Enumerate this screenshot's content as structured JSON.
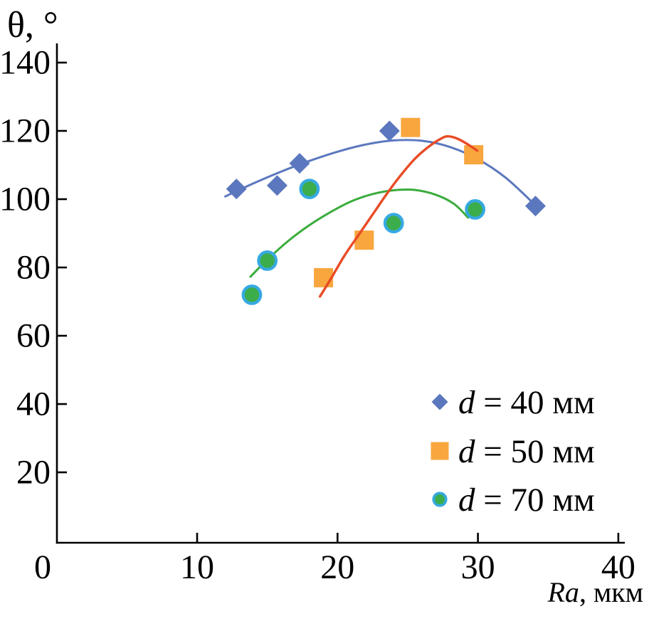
{
  "chart_data": {
    "type": "scatter",
    "title": "",
    "ylabel": "θ, °",
    "xlabel": "Ra, мкм",
    "xlabel_italic": "Ra",
    "xlabel_rest": ", мкм",
    "xlim": [
      0,
      40.5
    ],
    "ylim": [
      0,
      146
    ],
    "x_ticks": [
      0,
      10,
      20,
      30,
      40
    ],
    "y_ticks": [
      20,
      40,
      60,
      80,
      100,
      120,
      140
    ],
    "grid": false,
    "legend_position": "lower right inside",
    "axis_color": "#000000",
    "series": [
      {
        "id": "d40",
        "label": "d = 40 мм",
        "label_var": "d",
        "label_rest": " = 40 мм",
        "marker": "diamond",
        "marker_color": "#5B77BE",
        "trend_color": "#5B77BE",
        "points": [
          [
            12.8,
            103
          ],
          [
            15.7,
            104
          ],
          [
            17.3,
            110.5
          ],
          [
            23.7,
            120
          ],
          [
            34.1,
            98
          ]
        ],
        "trend": [
          [
            12.0,
            100.8
          ],
          [
            14,
            104.6
          ],
          [
            16,
            108.1
          ],
          [
            18,
            111.2
          ],
          [
            20,
            113.9
          ],
          [
            22,
            116.0
          ],
          [
            24,
            117.2
          ],
          [
            26,
            117.1
          ],
          [
            28,
            115.3
          ],
          [
            30,
            111.7
          ],
          [
            32,
            106.2
          ],
          [
            34.1,
            98.2
          ]
        ]
      },
      {
        "id": "d50",
        "label": "d = 50 мм",
        "label_var": "d",
        "label_rest": " = 50 мм",
        "marker": "square",
        "marker_color": "#F8A63E",
        "trend_color": "#E94B25",
        "points": [
          [
            19.0,
            77
          ],
          [
            21.9,
            88
          ],
          [
            25.2,
            121
          ],
          [
            29.7,
            113
          ]
        ],
        "trend": [
          [
            18.75,
            71.5
          ],
          [
            19.5,
            76.5
          ],
          [
            20.5,
            83.5
          ],
          [
            21.5,
            89.5
          ],
          [
            22.5,
            95.5
          ],
          [
            23.5,
            101.5
          ],
          [
            24.5,
            107.0
          ],
          [
            25.5,
            111.8
          ],
          [
            26.5,
            115.4
          ],
          [
            27.4,
            117.8
          ],
          [
            27.9,
            118.4
          ],
          [
            28.6,
            117.6
          ],
          [
            29.3,
            116.0
          ],
          [
            29.95,
            114.2
          ]
        ]
      },
      {
        "id": "d70",
        "label": "d = 70 мм",
        "label_var": "d",
        "label_rest": " = 70 мм",
        "marker": "circle",
        "marker_color": "#3CAD4B",
        "marker_ring_color": "#36A9E1",
        "trend_color": "#3AAC3C",
        "points": [
          [
            13.9,
            72
          ],
          [
            15.0,
            82
          ],
          [
            18.0,
            103
          ],
          [
            24.0,
            93
          ],
          [
            29.8,
            97
          ]
        ],
        "trend": [
          [
            13.8,
            77.3
          ],
          [
            15,
            82.3
          ],
          [
            16.5,
            87.8
          ],
          [
            18,
            92.4
          ],
          [
            19.5,
            96.2
          ],
          [
            21,
            99.4
          ],
          [
            22.5,
            101.5
          ],
          [
            24,
            102.6
          ],
          [
            25.5,
            102.7
          ],
          [
            27,
            101.3
          ],
          [
            28.3,
            98.6
          ],
          [
            29.3,
            94.6
          ]
        ]
      }
    ]
  }
}
